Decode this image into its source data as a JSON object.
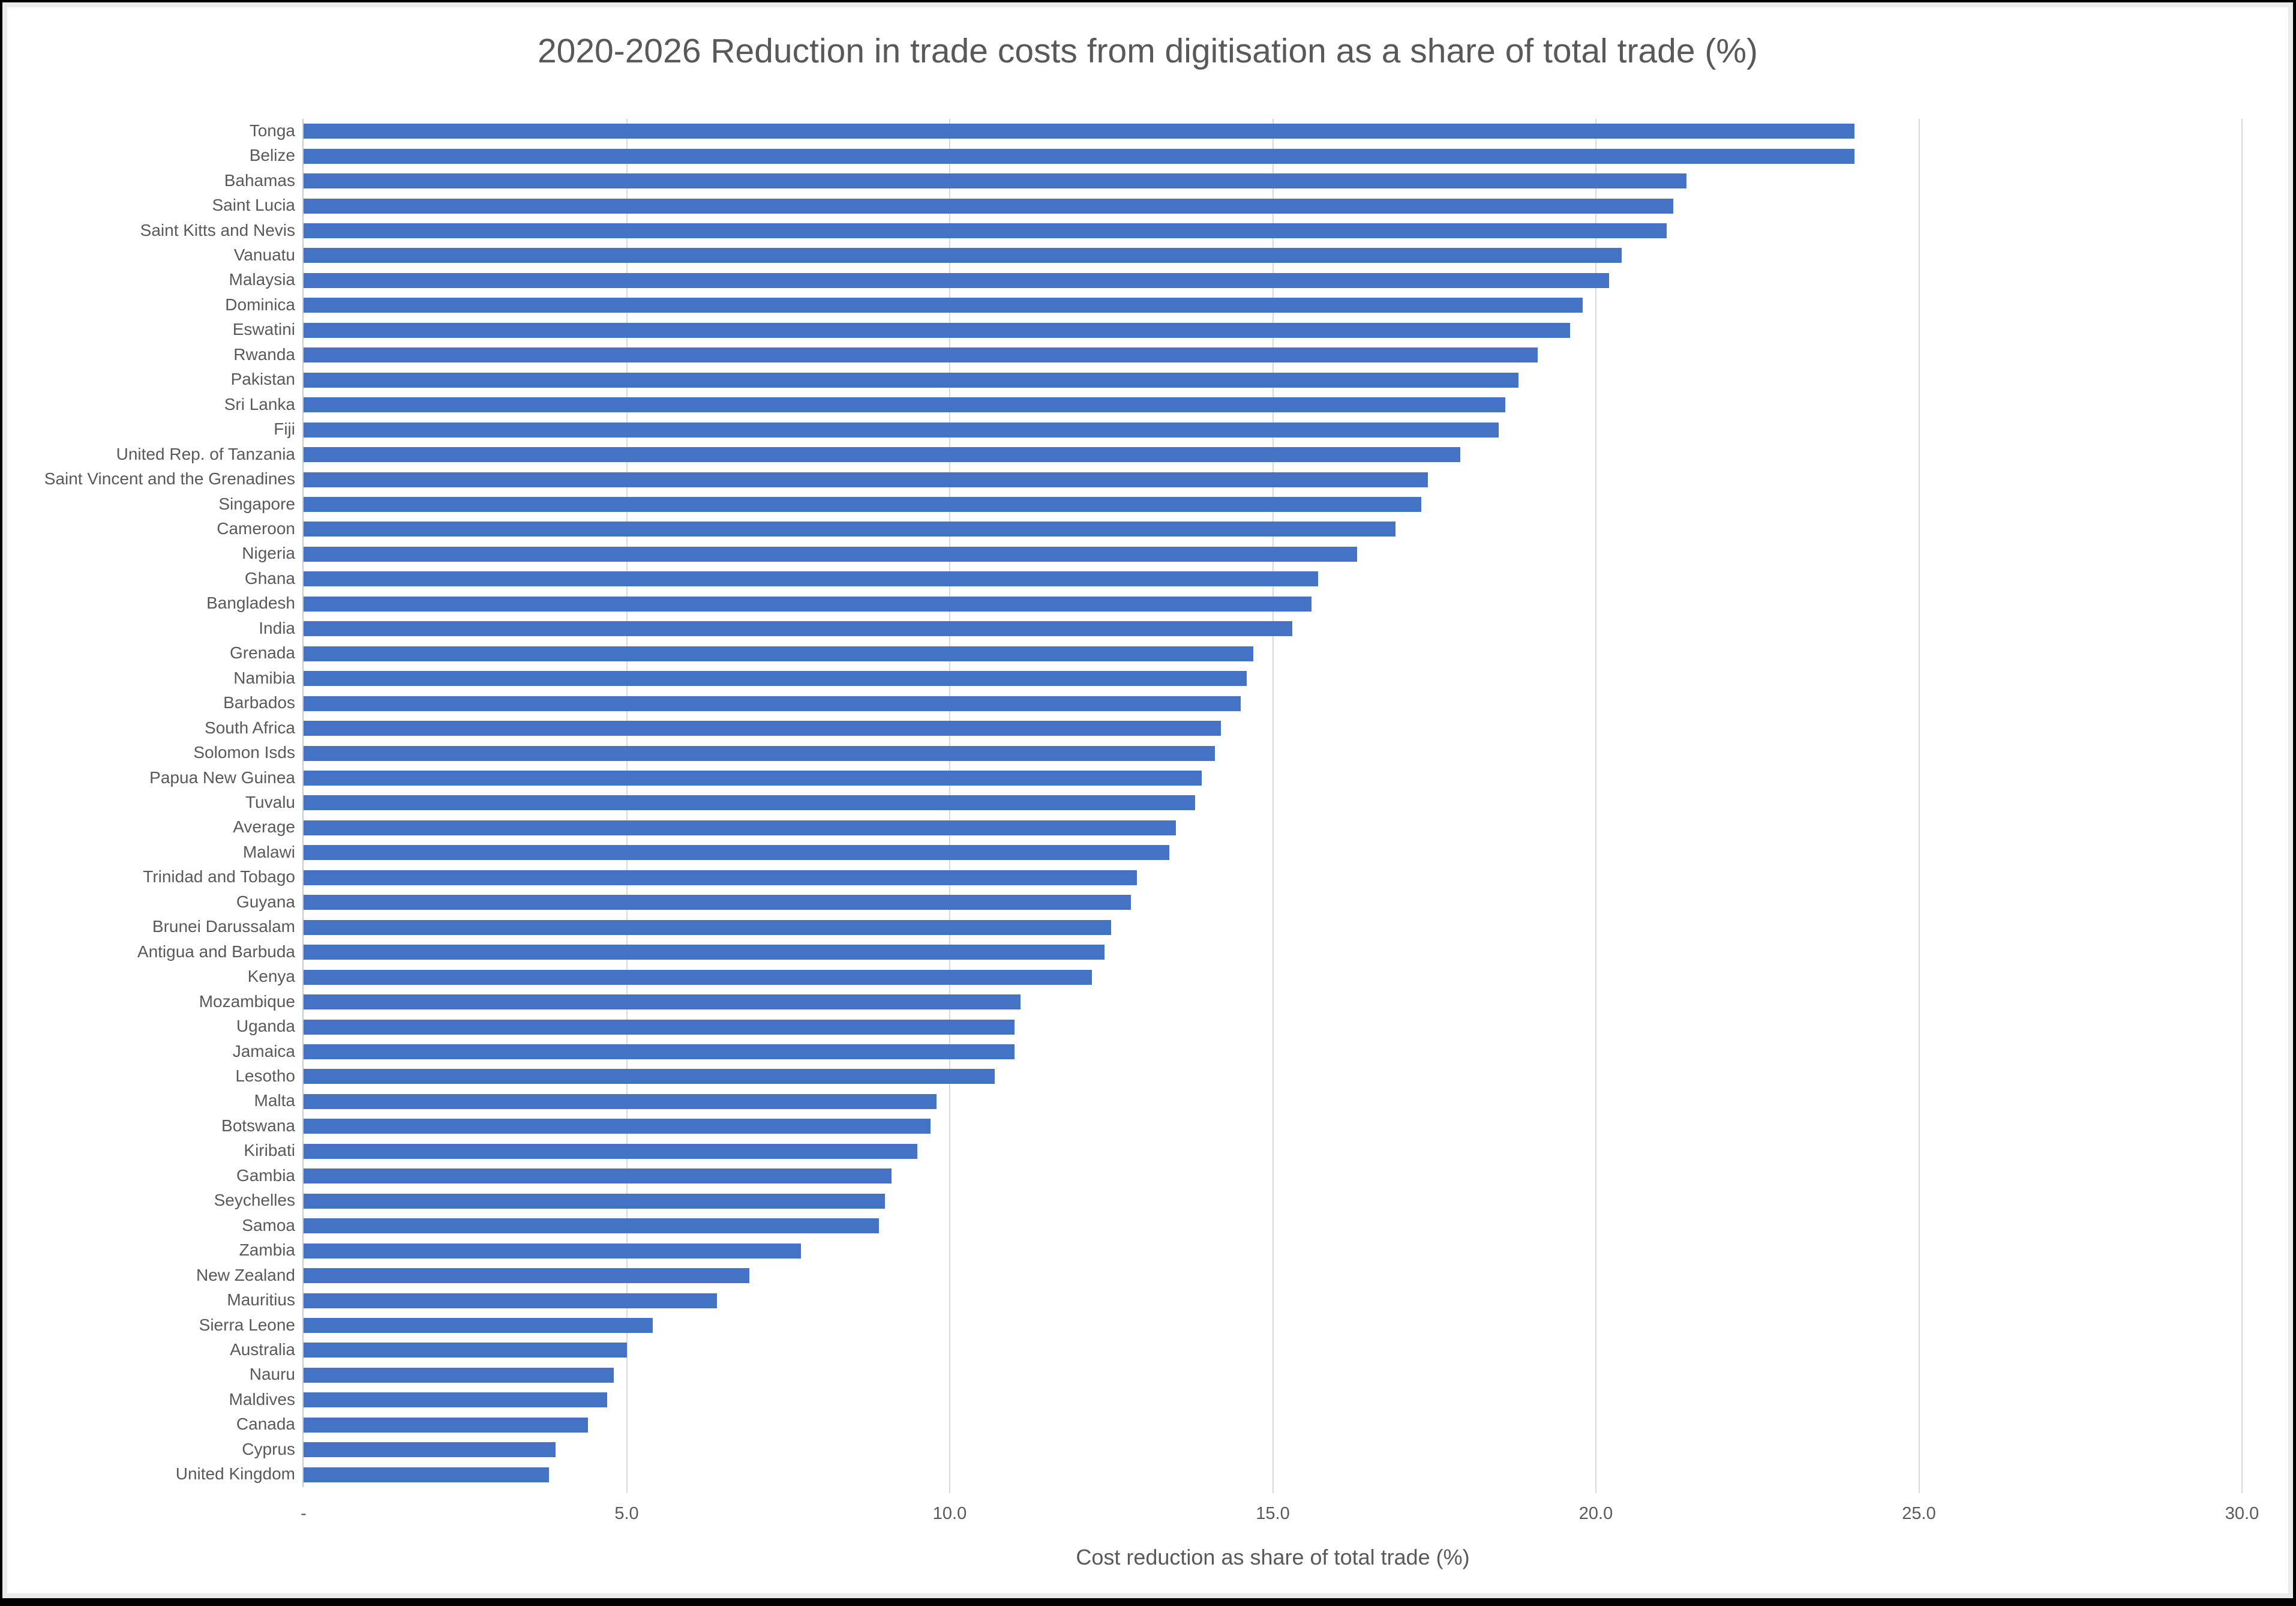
{
  "chart_data": {
    "type": "bar",
    "orientation": "horizontal",
    "title": "2020-2026 Reduction in trade costs from digitisation as a share of total trade (%)",
    "xlabel": "Cost reduction as share of total trade (%)",
    "ylabel": "",
    "xlim": [
      0,
      30
    ],
    "grid": true,
    "legend": false,
    "bar_color": "#4472c4",
    "gridline_color": "#d9d9d9",
    "text_color": "#595959",
    "x_ticks": [
      {
        "value": 0,
        "label": "-"
      },
      {
        "value": 5,
        "label": "5.0"
      },
      {
        "value": 10,
        "label": "10.0"
      },
      {
        "value": 15,
        "label": "15.0"
      },
      {
        "value": 20,
        "label": "20.0"
      },
      {
        "value": 25,
        "label": "25.0"
      },
      {
        "value": 30,
        "label": "30.0"
      }
    ],
    "categories": [
      "Tonga",
      "Belize",
      "Bahamas",
      "Saint Lucia",
      "Saint Kitts and Nevis",
      "Vanuatu",
      "Malaysia",
      "Dominica",
      "Eswatini",
      "Rwanda",
      "Pakistan",
      "Sri Lanka",
      "Fiji",
      "United Rep. of Tanzania",
      "Saint Vincent and the Grenadines",
      "Singapore",
      "Cameroon",
      "Nigeria",
      "Ghana",
      "Bangladesh",
      "India",
      "Grenada",
      "Namibia",
      "Barbados",
      "South Africa",
      "Solomon Isds",
      "Papua New Guinea",
      "Tuvalu",
      "Average",
      "Malawi",
      "Trinidad and Tobago",
      "Guyana",
      "Brunei Darussalam",
      "Antigua and Barbuda",
      "Kenya",
      "Mozambique",
      "Uganda",
      "Jamaica",
      "Lesotho",
      "Malta",
      "Botswana",
      "Kiribati",
      "Gambia",
      "Seychelles",
      "Samoa",
      "Zambia",
      "New Zealand",
      "Mauritius",
      "Sierra Leone",
      "Australia",
      "Nauru",
      "Maldives",
      "Canada",
      "Cyprus",
      "United Kingdom"
    ],
    "values": [
      24.0,
      24.0,
      21.4,
      21.2,
      21.1,
      20.4,
      20.2,
      19.8,
      19.6,
      19.1,
      18.8,
      18.6,
      18.5,
      17.9,
      17.4,
      17.3,
      16.9,
      16.3,
      15.7,
      15.6,
      15.3,
      14.7,
      14.6,
      14.5,
      14.2,
      14.1,
      13.9,
      13.8,
      13.5,
      13.4,
      12.9,
      12.8,
      12.5,
      12.4,
      12.2,
      11.1,
      11.0,
      11.0,
      10.7,
      9.8,
      9.7,
      9.5,
      9.1,
      9.0,
      8.9,
      7.7,
      6.9,
      6.4,
      5.4,
      5.0,
      4.8,
      4.7,
      4.4,
      3.9,
      3.8
    ]
  }
}
